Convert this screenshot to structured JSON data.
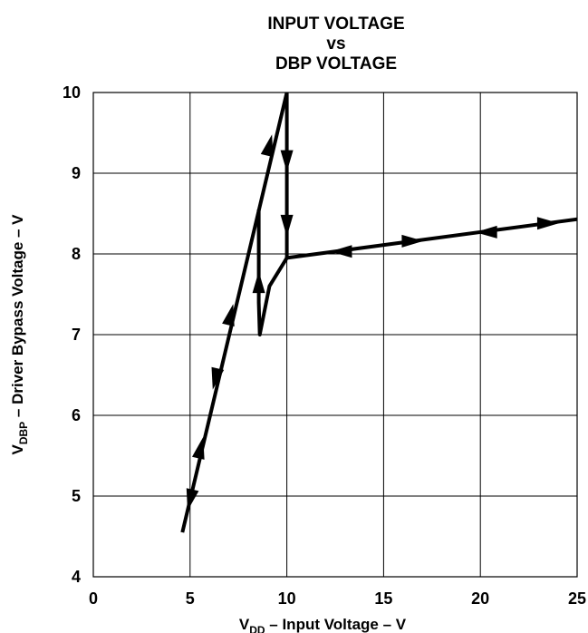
{
  "chart_data": {
    "type": "line",
    "title": [
      "INPUT VOLTAGE",
      "vs",
      "DBP VOLTAGE"
    ],
    "xlabel": {
      "main": "V",
      "sub": "DD",
      "rest": " – Input Voltage – V"
    },
    "ylabel": {
      "main": "V",
      "sub": "DBP",
      "rest": " – Driver Bypass Voltage – V"
    },
    "xlim": [
      0,
      25
    ],
    "ylim": [
      4,
      10
    ],
    "xticks": [
      0,
      5,
      10,
      15,
      20,
      25
    ],
    "yticks": [
      4,
      5,
      6,
      7,
      8,
      9,
      10
    ],
    "grid": true,
    "series": [
      {
        "x": [
          4.6,
          10
        ],
        "y": [
          4.55,
          10
        ]
      },
      {
        "x": [
          10,
          10
        ],
        "y": [
          10,
          7.95
        ]
      },
      {
        "x": [
          10,
          25
        ],
        "y": [
          7.95,
          8.43
        ]
      },
      {
        "x": [
          10,
          9.1,
          8.6,
          8.55,
          8.55
        ],
        "y": [
          7.95,
          7.6,
          7.0,
          7.4,
          8.55
        ]
      }
    ],
    "arrows": [
      {
        "x": 5.0,
        "y": 4.95,
        "dir": "down"
      },
      {
        "x": 5.55,
        "y": 5.6,
        "dir": "up"
      },
      {
        "x": 6.3,
        "y": 6.45,
        "dir": "down"
      },
      {
        "x": 7.1,
        "y": 7.25,
        "dir": "up"
      },
      {
        "x": 9.1,
        "y": 9.35,
        "dir": "up"
      },
      {
        "x": 8.55,
        "y": 7.65,
        "dir": "up"
      },
      {
        "x": 10,
        "y": 9.15,
        "dir": "down"
      },
      {
        "x": 10,
        "y": 8.35,
        "dir": "down"
      },
      {
        "x": 12.8,
        "y": 8.03,
        "dir": "left"
      },
      {
        "x": 16.5,
        "y": 8.16,
        "dir": "right"
      },
      {
        "x": 20.3,
        "y": 8.27,
        "dir": "left"
      },
      {
        "x": 23.5,
        "y": 8.38,
        "dir": "right"
      }
    ]
  }
}
